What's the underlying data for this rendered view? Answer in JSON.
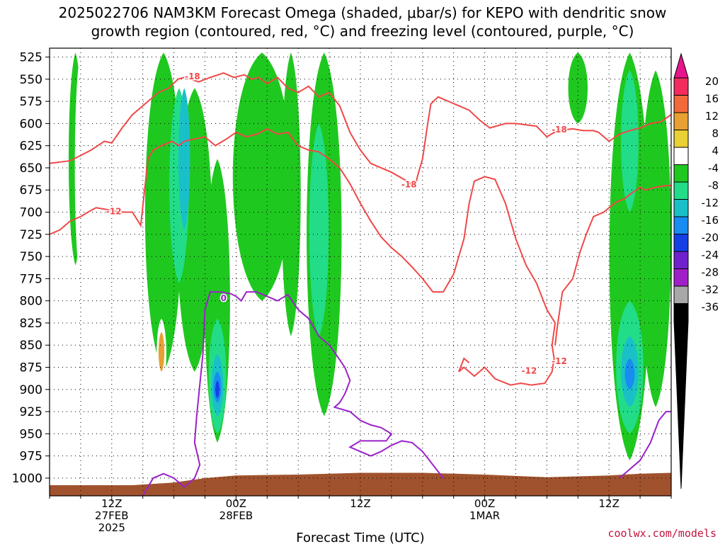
{
  "title": {
    "line1": "2025022706 NAM3KM Forecast Omega (shaded, μbar/s) for KEPO with dendritic snow",
    "line2": "growth region (contoured, red, °C) and freezing level (contoured, purple, °C)"
  },
  "credit": "coolwx.com/models",
  "chart_data": {
    "type": "heatmap",
    "xlabel": "Forecast Time (UTC)",
    "x_range_hours": [
      0,
      60
    ],
    "x_ticks": [
      {
        "hour": 6,
        "lines": [
          "12Z",
          "27FEB",
          "2025"
        ]
      },
      {
        "hour": 18,
        "lines": [
          "00Z",
          "28FEB"
        ]
      },
      {
        "hour": 30,
        "lines": [
          "12Z"
        ]
      },
      {
        "hour": 42,
        "lines": [
          "00Z",
          "1MAR"
        ]
      },
      {
        "hour": 54,
        "lines": [
          "12Z"
        ]
      }
    ],
    "y_label": "",
    "y_range_hPa": [
      1020,
      515
    ],
    "y_ticks": [
      525,
      550,
      575,
      600,
      625,
      650,
      675,
      700,
      725,
      750,
      775,
      800,
      825,
      850,
      875,
      900,
      925,
      950,
      975,
      1000
    ],
    "grid": "dotted",
    "colorbar": {
      "labels": [
        "20",
        "16",
        "12",
        "8",
        "4",
        "-4",
        "-8",
        "-12",
        "-16",
        "-20",
        "-24",
        "-28",
        "-32",
        "-36"
      ],
      "levels": [
        20,
        16,
        12,
        8,
        4,
        -4,
        -8,
        -12,
        -16,
        -20,
        -24,
        -28,
        -32,
        -36
      ],
      "colors": [
        "#f22c5e",
        "#f2693b",
        "#e8a032",
        "#e8d035",
        "#ffffff",
        "#1fc81f",
        "#22dc88",
        "#1ac0c8",
        "#188cf0",
        "#1440e6",
        "#7020cc",
        "#a020c8",
        "#a8a8a8",
        "#000000"
      ],
      "top_arrow_color": "#e8148c",
      "bottom_arrow_color": "#000000"
    },
    "omega_regions": [
      {
        "level": -4,
        "hour": 2.5,
        "p_top": 520,
        "p_bot": 760,
        "hw": 0.7
      },
      {
        "level": -4,
        "hour": 11.0,
        "p_top": 520,
        "p_bot": 880,
        "hw": 1.9
      },
      {
        "level": -4,
        "hour": 14.0,
        "p_top": 560,
        "p_bot": 880,
        "hw": 1.8
      },
      {
        "level": -4,
        "hour": 16.2,
        "p_top": 640,
        "p_bot": 960,
        "hw": 1.3
      },
      {
        "level": -4,
        "hour": 20.5,
        "p_top": 520,
        "p_bot": 800,
        "hw": 3.0
      },
      {
        "level": -4,
        "hour": 23.3,
        "p_top": 520,
        "p_bot": 840,
        "hw": 1.0
      },
      {
        "level": -4,
        "hour": 26.5,
        "p_top": 520,
        "p_bot": 930,
        "hw": 1.8
      },
      {
        "level": -4,
        "hour": 51.0,
        "p_top": 520,
        "p_bot": 600,
        "hw": 1.0
      },
      {
        "level": -4,
        "hour": 56.0,
        "p_top": 520,
        "p_bot": 980,
        "hw": 2.1
      },
      {
        "level": -4,
        "hour": 58.5,
        "p_top": 540,
        "p_bot": 920,
        "hw": 1.6
      },
      {
        "level": -8,
        "hour": 12.5,
        "p_top": 560,
        "p_bot": 780,
        "hw": 1.0
      },
      {
        "level": -8,
        "hour": 16.2,
        "p_top": 820,
        "p_bot": 950,
        "hw": 0.9
      },
      {
        "level": -8,
        "hour": 26.0,
        "p_top": 600,
        "p_bot": 840,
        "hw": 1.0
      },
      {
        "level": -8,
        "hour": 56.0,
        "p_top": 540,
        "p_bot": 700,
        "hw": 0.9
      },
      {
        "level": -8,
        "hour": 56.0,
        "p_top": 800,
        "p_bot": 950,
        "hw": 1.4
      },
      {
        "level": -12,
        "hour": 13.0,
        "p_top": 560,
        "p_bot": 720,
        "hw": 0.6
      },
      {
        "level": -12,
        "hour": 16.2,
        "p_top": 860,
        "p_bot": 930,
        "hw": 0.6
      },
      {
        "level": -12,
        "hour": 56.0,
        "p_top": 840,
        "p_bot": 920,
        "hw": 0.9
      },
      {
        "level": -16,
        "hour": 16.2,
        "p_top": 880,
        "p_bot": 915,
        "hw": 0.4
      },
      {
        "level": -16,
        "hour": 56.0,
        "p_top": 865,
        "p_bot": 900,
        "hw": 0.5
      },
      {
        "level": -20,
        "hour": 16.2,
        "p_top": 890,
        "p_bot": 910,
        "hw": 0.2
      },
      {
        "level": 4,
        "hour": 3.0,
        "p_top": 520,
        "p_bot": 780,
        "hw": 0.6
      },
      {
        "level": 4,
        "hour": 10.8,
        "p_top": 820,
        "p_bot": 900,
        "hw": 0.5
      },
      {
        "level": 4,
        "hour": 25.0,
        "p_top": 520,
        "p_bot": 560,
        "hw": 0.3
      },
      {
        "level": 4,
        "hour": 36.7,
        "p_top": 575,
        "p_bot": 670,
        "hw": 0.3
      },
      {
        "level": 4,
        "hour": 34.3,
        "p_top": 690,
        "p_bot": 790,
        "hw": 0.4
      },
      {
        "level": 4,
        "hour": 36.3,
        "p_top": 830,
        "p_bot": 900,
        "hw": 0.4
      },
      {
        "level": 4,
        "hour": 38.1,
        "p_top": 565,
        "p_bot": 650,
        "hw": 0.4
      },
      {
        "level": 4,
        "hour": 38.2,
        "p_top": 840,
        "p_bot": 950,
        "hw": 0.6
      },
      {
        "level": 4,
        "hour": 37.6,
        "p_top": 520,
        "p_bot": 560,
        "hw": 0.8
      },
      {
        "level": 4,
        "hour": 45.4,
        "p_top": 520,
        "p_bot": 570,
        "hw": 0.6
      },
      {
        "level": 4,
        "hour": 48.0,
        "p_top": 920,
        "p_bot": 950,
        "hw": 0.3
      },
      {
        "level": 4,
        "hour": 28.0,
        "p_top": 925,
        "p_bot": 945,
        "hw": 0.5
      },
      {
        "level": 12,
        "hour": 10.8,
        "p_top": 835,
        "p_bot": 880,
        "hw": 0.3
      }
    ],
    "dgz_label_18": "-18",
    "dgz_label_12": "-12",
    "dgz_minus18": [
      [
        0,
        645
      ],
      [
        2,
        642
      ],
      [
        4,
        630
      ],
      [
        5.3,
        620
      ],
      [
        6,
        622
      ],
      [
        7,
        605
      ],
      [
        8,
        590
      ],
      [
        9.5,
        575
      ],
      [
        10.5,
        565
      ],
      [
        11.5,
        560
      ],
      [
        12.4,
        550
      ],
      [
        13,
        548
      ],
      [
        14.4,
        553
      ],
      [
        15.5,
        548
      ],
      [
        16.8,
        543
      ],
      [
        17.8,
        548
      ],
      [
        18.8,
        545
      ],
      [
        19.5,
        550
      ],
      [
        20.2,
        548
      ],
      [
        21,
        555
      ],
      [
        22,
        548
      ],
      [
        23,
        560
      ],
      [
        24,
        565
      ],
      [
        25,
        558
      ],
      [
        26,
        570
      ],
      [
        27,
        565
      ],
      [
        28,
        580
      ],
      [
        29,
        610
      ],
      [
        30,
        630
      ],
      [
        31,
        645
      ],
      [
        33,
        655
      ],
      [
        34.5,
        665
      ],
      [
        35.3,
        672
      ],
      [
        35.5,
        660
      ],
      [
        36,
        640
      ],
      [
        36.5,
        600
      ],
      [
        36.8,
        578
      ],
      [
        37.5,
        570
      ],
      [
        38.5,
        575
      ],
      [
        39.5,
        580
      ],
      [
        40.5,
        585
      ],
      [
        41.5,
        596
      ],
      [
        42.5,
        605
      ],
      [
        44,
        600
      ],
      [
        45,
        600
      ],
      [
        47,
        603
      ],
      [
        48,
        615
      ],
      [
        49,
        608
      ],
      [
        50.5,
        606
      ],
      [
        51.5,
        608
      ],
      [
        52.5,
        608
      ],
      [
        53,
        610
      ],
      [
        54,
        620
      ],
      [
        55,
        612
      ],
      [
        56,
        608
      ],
      [
        57,
        605
      ],
      [
        58,
        600
      ],
      [
        59,
        598
      ],
      [
        60,
        590
      ]
    ],
    "dgz_minus12": [
      [
        0,
        725
      ],
      [
        1,
        720
      ],
      [
        2,
        710
      ],
      [
        3,
        705
      ],
      [
        4,
        698
      ],
      [
        4.5,
        695
      ],
      [
        6,
        698
      ],
      [
        7,
        700
      ],
      [
        8,
        700
      ],
      [
        8.8,
        715
      ],
      [
        9.5,
        640
      ],
      [
        10,
        630
      ],
      [
        10.8,
        625
      ],
      [
        11.8,
        620
      ],
      [
        12.5,
        625
      ],
      [
        13,
        620
      ],
      [
        15,
        615
      ],
      [
        16,
        625
      ],
      [
        17,
        618
      ],
      [
        18,
        610
      ],
      [
        19,
        615
      ],
      [
        20,
        612
      ],
      [
        21,
        606
      ],
      [
        22,
        612
      ],
      [
        23,
        610
      ],
      [
        24,
        625
      ],
      [
        25,
        630
      ],
      [
        26,
        632
      ],
      [
        27,
        640
      ],
      [
        28,
        650
      ],
      [
        29,
        668
      ],
      [
        30,
        690
      ],
      [
        31,
        710
      ],
      [
        32,
        728
      ],
      [
        33,
        740
      ],
      [
        34,
        750
      ],
      [
        35,
        762
      ],
      [
        36,
        775
      ],
      [
        37,
        790
      ],
      [
        38,
        790
      ],
      [
        39,
        770
      ],
      [
        40,
        730
      ],
      [
        40.5,
        690
      ],
      [
        41,
        665
      ],
      [
        42,
        660
      ],
      [
        43,
        663
      ],
      [
        44,
        690
      ],
      [
        45,
        730
      ],
      [
        46,
        760
      ],
      [
        47,
        780
      ],
      [
        48,
        810
      ],
      [
        48.8,
        825
      ],
      [
        48.5,
        850
      ],
      [
        48.7,
        865
      ],
      [
        48.5,
        880
      ],
      [
        47.8,
        893
      ],
      [
        46.5,
        895
      ],
      [
        45.5,
        893
      ],
      [
        44.5,
        895
      ],
      [
        43,
        888
      ],
      [
        42,
        875
      ],
      [
        41,
        885
      ],
      [
        40,
        875
      ],
      [
        39.5,
        880
      ],
      [
        40,
        865
      ],
      [
        40.5,
        870
      ]
    ],
    "dgz_minus12_b": [
      [
        48.8,
        850
      ],
      [
        49,
        830
      ],
      [
        49.5,
        790
      ],
      [
        50.5,
        775
      ],
      [
        51.2,
        745
      ],
      [
        51.8,
        725
      ],
      [
        52.5,
        705
      ],
      [
        53.5,
        700
      ],
      [
        54.2,
        693
      ],
      [
        54.8,
        688
      ],
      [
        55.5,
        685
      ],
      [
        56,
        680
      ],
      [
        57,
        672
      ],
      [
        57.5,
        675
      ],
      [
        58.5,
        672
      ],
      [
        59.5,
        670
      ],
      [
        60,
        670
      ]
    ],
    "freezing_label": "0",
    "freezing_line": [
      [
        9,
        1020
      ],
      [
        10,
        1000
      ],
      [
        11,
        995
      ],
      [
        12,
        1000
      ],
      [
        13,
        1010
      ],
      [
        14,
        1000
      ],
      [
        14.5,
        985
      ],
      [
        14,
        960
      ],
      [
        14.2,
        930
      ],
      [
        14.8,
        860
      ],
      [
        15,
        810
      ],
      [
        15.5,
        790
      ],
      [
        16.5,
        790
      ],
      [
        17.5,
        792
      ],
      [
        18,
        795
      ],
      [
        18.5,
        800
      ],
      [
        19,
        790
      ],
      [
        20,
        790
      ],
      [
        21,
        795
      ],
      [
        22,
        800
      ],
      [
        23,
        793
      ],
      [
        24,
        810
      ],
      [
        25,
        820
      ],
      [
        26,
        840
      ],
      [
        27,
        850
      ],
      [
        27.5,
        858
      ],
      [
        28.5,
        875
      ],
      [
        29,
        890
      ],
      [
        28.5,
        905
      ],
      [
        28,
        915
      ],
      [
        27.5,
        920
      ],
      [
        29,
        925
      ],
      [
        30,
        935
      ],
      [
        31,
        940
      ],
      [
        32,
        943
      ],
      [
        33,
        950
      ],
      [
        32.5,
        958
      ],
      [
        30,
        958
      ],
      [
        29,
        965
      ],
      [
        30,
        970
      ],
      [
        31,
        975
      ],
      [
        32,
        970
      ],
      [
        33,
        963
      ],
      [
        34,
        958
      ],
      [
        35,
        960
      ],
      [
        36,
        970
      ],
      [
        37,
        985
      ],
      [
        38,
        1000
      ]
    ],
    "freezing_line_b": [
      [
        55,
        1000
      ],
      [
        56,
        990
      ],
      [
        57,
        980
      ],
      [
        58,
        960
      ],
      [
        58.8,
        935
      ],
      [
        59.5,
        925
      ],
      [
        60,
        925
      ]
    ]
  }
}
